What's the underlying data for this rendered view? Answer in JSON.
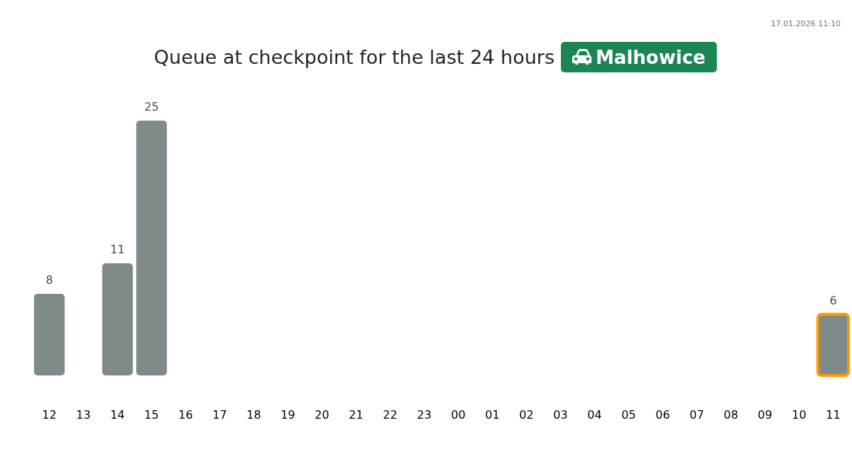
{
  "chart_data": {
    "type": "bar",
    "title": "Queue at checkpoint for the last 24 hours",
    "subtitle": "Malhowice",
    "annotations": [
      "17.01.2026 11:10"
    ],
    "categories": [
      "12",
      "13",
      "14",
      "15",
      "16",
      "17",
      "18",
      "19",
      "20",
      "21",
      "22",
      "23",
      "00",
      "01",
      "02",
      "03",
      "04",
      "05",
      "06",
      "07",
      "08",
      "09",
      "10",
      "11"
    ],
    "values": [
      8,
      null,
      11,
      25,
      null,
      null,
      null,
      null,
      null,
      null,
      null,
      null,
      null,
      null,
      null,
      null,
      null,
      null,
      null,
      null,
      null,
      null,
      null,
      6
    ],
    "color": "#7f8b8a",
    "data_labels": true
  }
}
